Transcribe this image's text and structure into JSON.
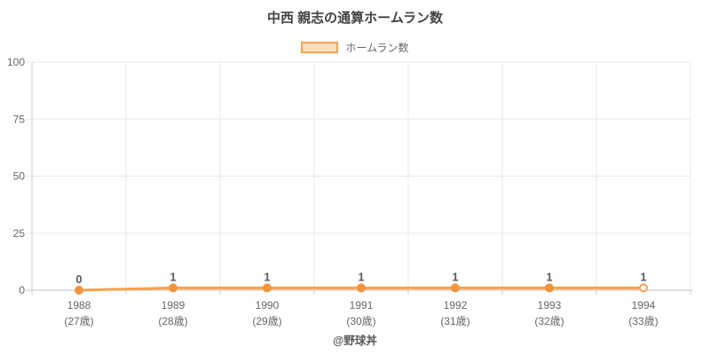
{
  "title": "中西 親志の通算ホームラン数",
  "legend": {
    "items": [
      {
        "label": "ホームラン数"
      }
    ]
  },
  "footer": "@野球丼",
  "colors": {
    "line": "#f7a24f",
    "point": "#f1953f",
    "point_last_fill": "#ffffff",
    "area_fill_opacity": "0.35",
    "grid": "#e8e8e8",
    "axis": "#c6c6c6",
    "axis_left": "#cccccc",
    "tick": "#cccccc",
    "tick_label": "#666666",
    "data_label": "#565656",
    "title_color": "#424242"
  },
  "chart_data": {
    "type": "line",
    "title": "中西 親志の通算ホームラン数",
    "categories": [
      "1988",
      "1989",
      "1990",
      "1991",
      "1992",
      "1993",
      "1994"
    ],
    "category_sublabels": [
      "(27歳)",
      "(28歳)",
      "(29歳)",
      "(30歳)",
      "(31歳)",
      "(32歳)",
      "(33歳)"
    ],
    "series": [
      {
        "name": "ホームラン数",
        "values": [
          0,
          1,
          1,
          1,
          1,
          1,
          1
        ]
      }
    ],
    "ylabel": "",
    "xlabel": "",
    "ylim": [
      0,
      100
    ],
    "yticks": [
      0,
      25,
      50,
      75,
      100
    ],
    "grid": true,
    "legend_position": "top",
    "annotation": "@野球丼"
  }
}
